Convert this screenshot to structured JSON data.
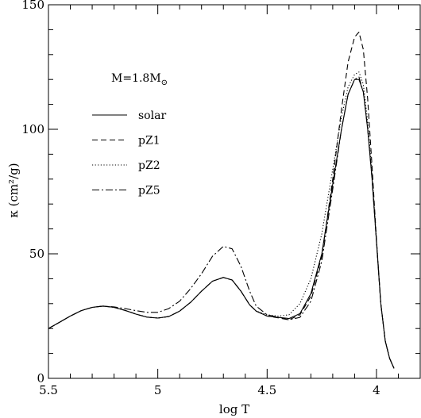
{
  "chart_data": {
    "type": "line",
    "title": "",
    "xlabel": "log T",
    "ylabel": "κ (cm²/g)",
    "xlim": [
      5.5,
      3.8
    ],
    "ylim": [
      0,
      150
    ],
    "x_reversed": true,
    "x_ticks": [
      5.5,
      5,
      4.5,
      4
    ],
    "x_tick_labels": [
      "5.5",
      "5",
      "4.5",
      "4"
    ],
    "y_ticks": [
      0,
      50,
      100,
      150
    ],
    "y_tick_labels": [
      "0",
      "50",
      "100",
      "150"
    ],
    "grid": false,
    "legend_position": "upper-left",
    "annotation": "M=1.8M",
    "annotation_sub": "⊙",
    "series": [
      {
        "name": "solar",
        "dash": "solid",
        "x": [
          5.5,
          5.45,
          5.4,
          5.35,
          5.3,
          5.25,
          5.2,
          5.15,
          5.1,
          5.05,
          5.0,
          4.95,
          4.9,
          4.85,
          4.8,
          4.75,
          4.7,
          4.66,
          4.62,
          4.58,
          4.55,
          4.5,
          4.45,
          4.4,
          4.35,
          4.3,
          4.25,
          4.2,
          4.16,
          4.13,
          4.1,
          4.08,
          4.06,
          4.04,
          4.02,
          4.0,
          3.98,
          3.96,
          3.94,
          3.92
        ],
        "y": [
          20,
          22.5,
          25,
          27.2,
          28.5,
          29,
          28.5,
          27.3,
          25.8,
          24.6,
          24.2,
          24.8,
          27,
          30.5,
          35,
          39,
          40.5,
          39.5,
          35,
          29.5,
          27,
          25,
          24.5,
          24,
          26,
          34,
          50,
          78,
          100,
          114,
          120,
          120,
          115,
          100,
          80,
          55,
          30,
          15,
          8,
          4
        ]
      },
      {
        "name": "pZ1",
        "dash": "dashed",
        "x": [
          5.5,
          5.45,
          5.4,
          5.35,
          5.3,
          5.25,
          5.2,
          5.15,
          5.1,
          5.05,
          5.0,
          4.95,
          4.9,
          4.85,
          4.8,
          4.75,
          4.7,
          4.66,
          4.62,
          4.58,
          4.55,
          4.5,
          4.45,
          4.4,
          4.35,
          4.3,
          4.25,
          4.2,
          4.16,
          4.13,
          4.1,
          4.08,
          4.06,
          4.04,
          4.02,
          4.0,
          3.98,
          3.96,
          3.94,
          3.92
        ],
        "y": [
          20,
          22.5,
          25,
          27.2,
          28.5,
          29,
          28.5,
          27.3,
          25.8,
          24.6,
          24.2,
          24.8,
          27,
          30.5,
          35,
          39,
          40.5,
          39.5,
          35,
          29.5,
          27,
          25,
          24.3,
          23.5,
          25.5,
          33,
          49,
          80,
          108,
          127,
          137,
          139,
          132,
          112,
          85,
          56,
          30,
          15,
          8,
          4
        ]
      },
      {
        "name": "pZ2",
        "dash": "dotted",
        "x": [
          5.5,
          5.45,
          5.4,
          5.35,
          5.3,
          5.25,
          5.2,
          5.15,
          5.1,
          5.05,
          5.0,
          4.95,
          4.9,
          4.85,
          4.8,
          4.75,
          4.7,
          4.66,
          4.62,
          4.58,
          4.55,
          4.5,
          4.45,
          4.4,
          4.35,
          4.3,
          4.25,
          4.2,
          4.16,
          4.13,
          4.1,
          4.08,
          4.06,
          4.04,
          4.02,
          4.0,
          3.98,
          3.96,
          3.94,
          3.92
        ],
        "y": [
          20,
          22.5,
          25,
          27.2,
          28.5,
          29,
          28.5,
          27.3,
          25.8,
          24.6,
          24.2,
          24.8,
          27,
          30.5,
          35,
          39,
          40.5,
          39.5,
          35,
          29.5,
          27,
          25.5,
          25,
          25.5,
          30,
          40,
          58,
          84,
          105,
          117,
          122,
          123,
          118,
          103,
          82,
          56,
          30,
          15,
          8,
          4
        ]
      },
      {
        "name": "pZ5",
        "dash": "dashdot",
        "x": [
          5.5,
          5.45,
          5.4,
          5.35,
          5.3,
          5.25,
          5.2,
          5.15,
          5.1,
          5.05,
          5.0,
          4.95,
          4.9,
          4.85,
          4.8,
          4.75,
          4.7,
          4.66,
          4.62,
          4.58,
          4.55,
          4.5,
          4.45,
          4.4,
          4.35,
          4.3,
          4.25,
          4.2,
          4.16,
          4.13,
          4.1,
          4.08,
          4.06,
          4.04,
          4.02,
          4.0,
          3.98,
          3.96,
          3.94,
          3.92
        ],
        "y": [
          20,
          22.5,
          25,
          27.2,
          28.5,
          29,
          28.7,
          28,
          27.2,
          26.5,
          26.5,
          28,
          31,
          36,
          42,
          49,
          53,
          52,
          45,
          35,
          29,
          25.5,
          24.5,
          23.5,
          24.5,
          31,
          47,
          76,
          100,
          114,
          120,
          121,
          115,
          100,
          80,
          55,
          30,
          15,
          8,
          4
        ]
      }
    ]
  }
}
